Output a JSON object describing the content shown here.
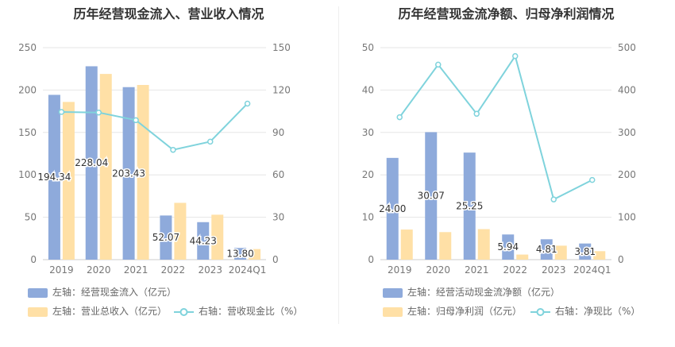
{
  "charts": [
    {
      "title": "历年经营现金流入、营业收入情况",
      "legend": [
        {
          "label": "左轴：经营现金流入（亿元）",
          "color": "#8eaadb"
        },
        {
          "label": "左轴：营业总收入（亿元）",
          "color": "#ffe0a6"
        },
        {
          "label": "右轴：营收现金比（%）",
          "color": "#7fd3dc"
        }
      ]
    },
    {
      "title": "历年经营现金流净额、归母净利润情况",
      "legend": [
        {
          "label": "左轴：经营活动现金流净额（亿元）",
          "color": "#8eaadb"
        },
        {
          "label": "左轴：归母净利润（亿元）",
          "color": "#ffe0a6"
        },
        {
          "label": "右轴：净现比（%）",
          "color": "#7fd3dc"
        }
      ]
    }
  ],
  "chart_data": [
    {
      "type": "bar",
      "categories": [
        "2019",
        "2020",
        "2021",
        "2022",
        "2023",
        "2024Q1"
      ],
      "ylim_left": [
        0,
        250
      ],
      "ylim_right": [
        0,
        150
      ],
      "yticks_left": [
        "0",
        "50",
        "100",
        "150",
        "200",
        "250"
      ],
      "yticks_right": [
        "0",
        "30",
        "60",
        "90",
        "120",
        "150"
      ],
      "grid": true,
      "series": [
        {
          "name": "左轴：经营现金流入（亿元）",
          "axis": "left",
          "kind": "bar",
          "color": "#8eaadb",
          "values": [
            194.34,
            228.04,
            203.43,
            52.07,
            44.23,
            13.8
          ],
          "labels": [
            "194.34",
            "228.04",
            "203.43",
            "52.07",
            "44.23",
            "13.80"
          ]
        },
        {
          "name": "左轴：营业总收入（亿元）",
          "axis": "left",
          "kind": "bar",
          "color": "#ffe0a6",
          "values": [
            186,
            219,
            206,
            67,
            53,
            12.5
          ]
        },
        {
          "name": "右轴：营收现金比（%）",
          "axis": "right",
          "kind": "line",
          "color": "#7fd3dc",
          "values": [
            104.5,
            104.1,
            98.7,
            77.7,
            83.5,
            110.4
          ]
        }
      ]
    },
    {
      "type": "bar",
      "categories": [
        "2019",
        "2020",
        "2021",
        "2022",
        "2023",
        "2024Q1"
      ],
      "ylim_left": [
        0,
        50
      ],
      "ylim_right": [
        0,
        500
      ],
      "yticks_left": [
        "0",
        "10",
        "20",
        "30",
        "40",
        "50"
      ],
      "yticks_right": [
        "0",
        "100",
        "200",
        "300",
        "400",
        "500"
      ],
      "grid": true,
      "series": [
        {
          "name": "左轴：经营活动现金流净额（亿元）",
          "axis": "left",
          "kind": "bar",
          "color": "#8eaadb",
          "values": [
            24.0,
            30.07,
            25.25,
            5.94,
            4.81,
            3.81
          ],
          "labels": [
            "24.00",
            "30.07",
            "25.25",
            "5.94",
            "4.81",
            "3.81"
          ]
        },
        {
          "name": "左轴：归母净利润（亿元）",
          "axis": "left",
          "kind": "bar",
          "color": "#ffe0a6",
          "values": [
            7.1,
            6.5,
            7.2,
            1.2,
            3.3,
            2.0
          ]
        },
        {
          "name": "右轴：净现比（%）",
          "axis": "right",
          "kind": "line",
          "color": "#7fd3dc",
          "values": [
            336,
            460,
            344,
            480,
            142,
            188
          ]
        }
      ]
    }
  ]
}
